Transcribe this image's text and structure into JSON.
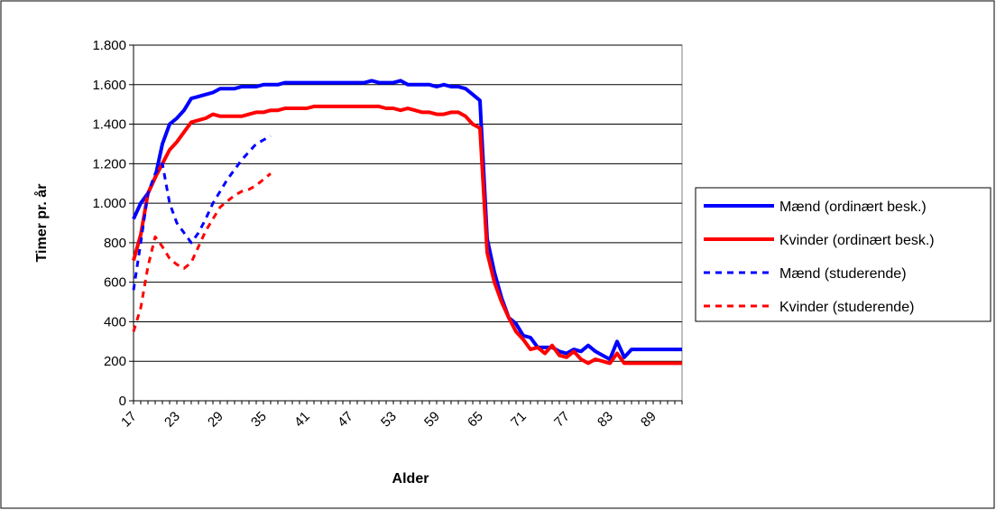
{
  "chart_data": {
    "type": "line",
    "xlabel": "Alder",
    "ylabel": "Timer pr. år",
    "xlim": [
      17,
      93
    ],
    "ylim": [
      0,
      1800
    ],
    "yticks": [
      0,
      200,
      400,
      600,
      800,
      1000,
      1200,
      1400,
      1600,
      1800
    ],
    "ytick_labels": [
      "0",
      "200",
      "400",
      "600",
      "800",
      "1.000",
      "1.200",
      "1.400",
      "1.600",
      "1.800"
    ],
    "xticks": [
      17,
      23,
      29,
      35,
      41,
      47,
      53,
      59,
      65,
      71,
      77,
      83,
      89
    ],
    "xtick_labels": [
      "17",
      "23",
      "29",
      "35",
      "41",
      "47",
      "53",
      "59",
      "65",
      "71",
      "77",
      "83",
      "89"
    ],
    "grid": "horizontal",
    "legend_position": "right",
    "series": [
      {
        "name": "Mænd (ordinært besk.)",
        "color": "#0000ff",
        "style": "solid",
        "x": [
          17,
          18,
          19,
          20,
          21,
          22,
          23,
          24,
          25,
          26,
          27,
          28,
          29,
          30,
          31,
          32,
          33,
          34,
          35,
          36,
          37,
          38,
          39,
          40,
          41,
          42,
          43,
          44,
          45,
          46,
          47,
          48,
          49,
          50,
          51,
          52,
          53,
          54,
          55,
          56,
          57,
          58,
          59,
          60,
          61,
          62,
          63,
          64,
          65,
          66,
          67,
          68,
          69,
          70,
          71,
          72,
          73,
          74,
          75,
          76,
          77,
          78,
          79,
          80,
          81,
          82,
          83,
          84,
          85,
          86,
          87,
          88,
          89,
          90,
          91,
          92,
          93
        ],
        "y": [
          920,
          1000,
          1050,
          1130,
          1300,
          1400,
          1430,
          1470,
          1530,
          1540,
          1550,
          1560,
          1580,
          1580,
          1580,
          1590,
          1590,
          1590,
          1600,
          1600,
          1600,
          1610,
          1610,
          1610,
          1610,
          1610,
          1610,
          1610,
          1610,
          1610,
          1610,
          1610,
          1610,
          1620,
          1610,
          1610,
          1610,
          1620,
          1600,
          1600,
          1600,
          1600,
          1590,
          1600,
          1590,
          1590,
          1580,
          1550,
          1520,
          820,
          650,
          520,
          420,
          390,
          330,
          320,
          270,
          270,
          270,
          250,
          240,
          260,
          250,
          280,
          250,
          230,
          210,
          300,
          220,
          260,
          260,
          260,
          260,
          260,
          260,
          260,
          260
        ]
      },
      {
        "name": "Kvinder (ordinært besk.)",
        "color": "#ff0000",
        "style": "solid",
        "x": [
          17,
          18,
          19,
          20,
          21,
          22,
          23,
          24,
          25,
          26,
          27,
          28,
          29,
          30,
          31,
          32,
          33,
          34,
          35,
          36,
          37,
          38,
          39,
          40,
          41,
          42,
          43,
          44,
          45,
          46,
          47,
          48,
          49,
          50,
          51,
          52,
          53,
          54,
          55,
          56,
          57,
          58,
          59,
          60,
          61,
          62,
          63,
          64,
          65,
          66,
          67,
          68,
          69,
          70,
          71,
          72,
          73,
          74,
          75,
          76,
          77,
          78,
          79,
          80,
          81,
          82,
          83,
          84,
          85,
          86,
          87,
          88,
          89,
          90,
          91,
          92,
          93
        ],
        "y": [
          710,
          840,
          1050,
          1130,
          1200,
          1270,
          1310,
          1360,
          1410,
          1420,
          1430,
          1450,
          1440,
          1440,
          1440,
          1440,
          1450,
          1460,
          1460,
          1470,
          1470,
          1480,
          1480,
          1480,
          1480,
          1490,
          1490,
          1490,
          1490,
          1490,
          1490,
          1490,
          1490,
          1490,
          1490,
          1480,
          1480,
          1470,
          1480,
          1470,
          1460,
          1460,
          1450,
          1450,
          1460,
          1460,
          1440,
          1400,
          1380,
          750,
          600,
          500,
          420,
          350,
          310,
          260,
          270,
          240,
          280,
          230,
          220,
          250,
          210,
          190,
          210,
          200,
          190,
          240,
          190,
          190,
          190,
          190,
          190,
          190,
          190,
          190,
          190
        ]
      },
      {
        "name": "Mænd (studerende)",
        "color": "#0000ff",
        "style": "dashed",
        "x": [
          17,
          18,
          19,
          20,
          21,
          22,
          23,
          24,
          25,
          26,
          27,
          28,
          29,
          30,
          31,
          32,
          33,
          34,
          35,
          36
        ],
        "y": [
          560,
          800,
          1050,
          1150,
          1200,
          1000,
          900,
          850,
          800,
          850,
          920,
          1000,
          1060,
          1120,
          1170,
          1220,
          1260,
          1300,
          1320,
          1340
        ]
      },
      {
        "name": "Kvinder (studerende)",
        "color": "#ff0000",
        "style": "dashed",
        "x": [
          17,
          18,
          19,
          20,
          21,
          22,
          23,
          24,
          25,
          26,
          27,
          28,
          29,
          30,
          31,
          32,
          33,
          34,
          35,
          36
        ],
        "y": [
          350,
          470,
          680,
          830,
          780,
          720,
          690,
          670,
          700,
          780,
          860,
          920,
          980,
          1010,
          1040,
          1060,
          1070,
          1090,
          1120,
          1150
        ]
      }
    ]
  }
}
